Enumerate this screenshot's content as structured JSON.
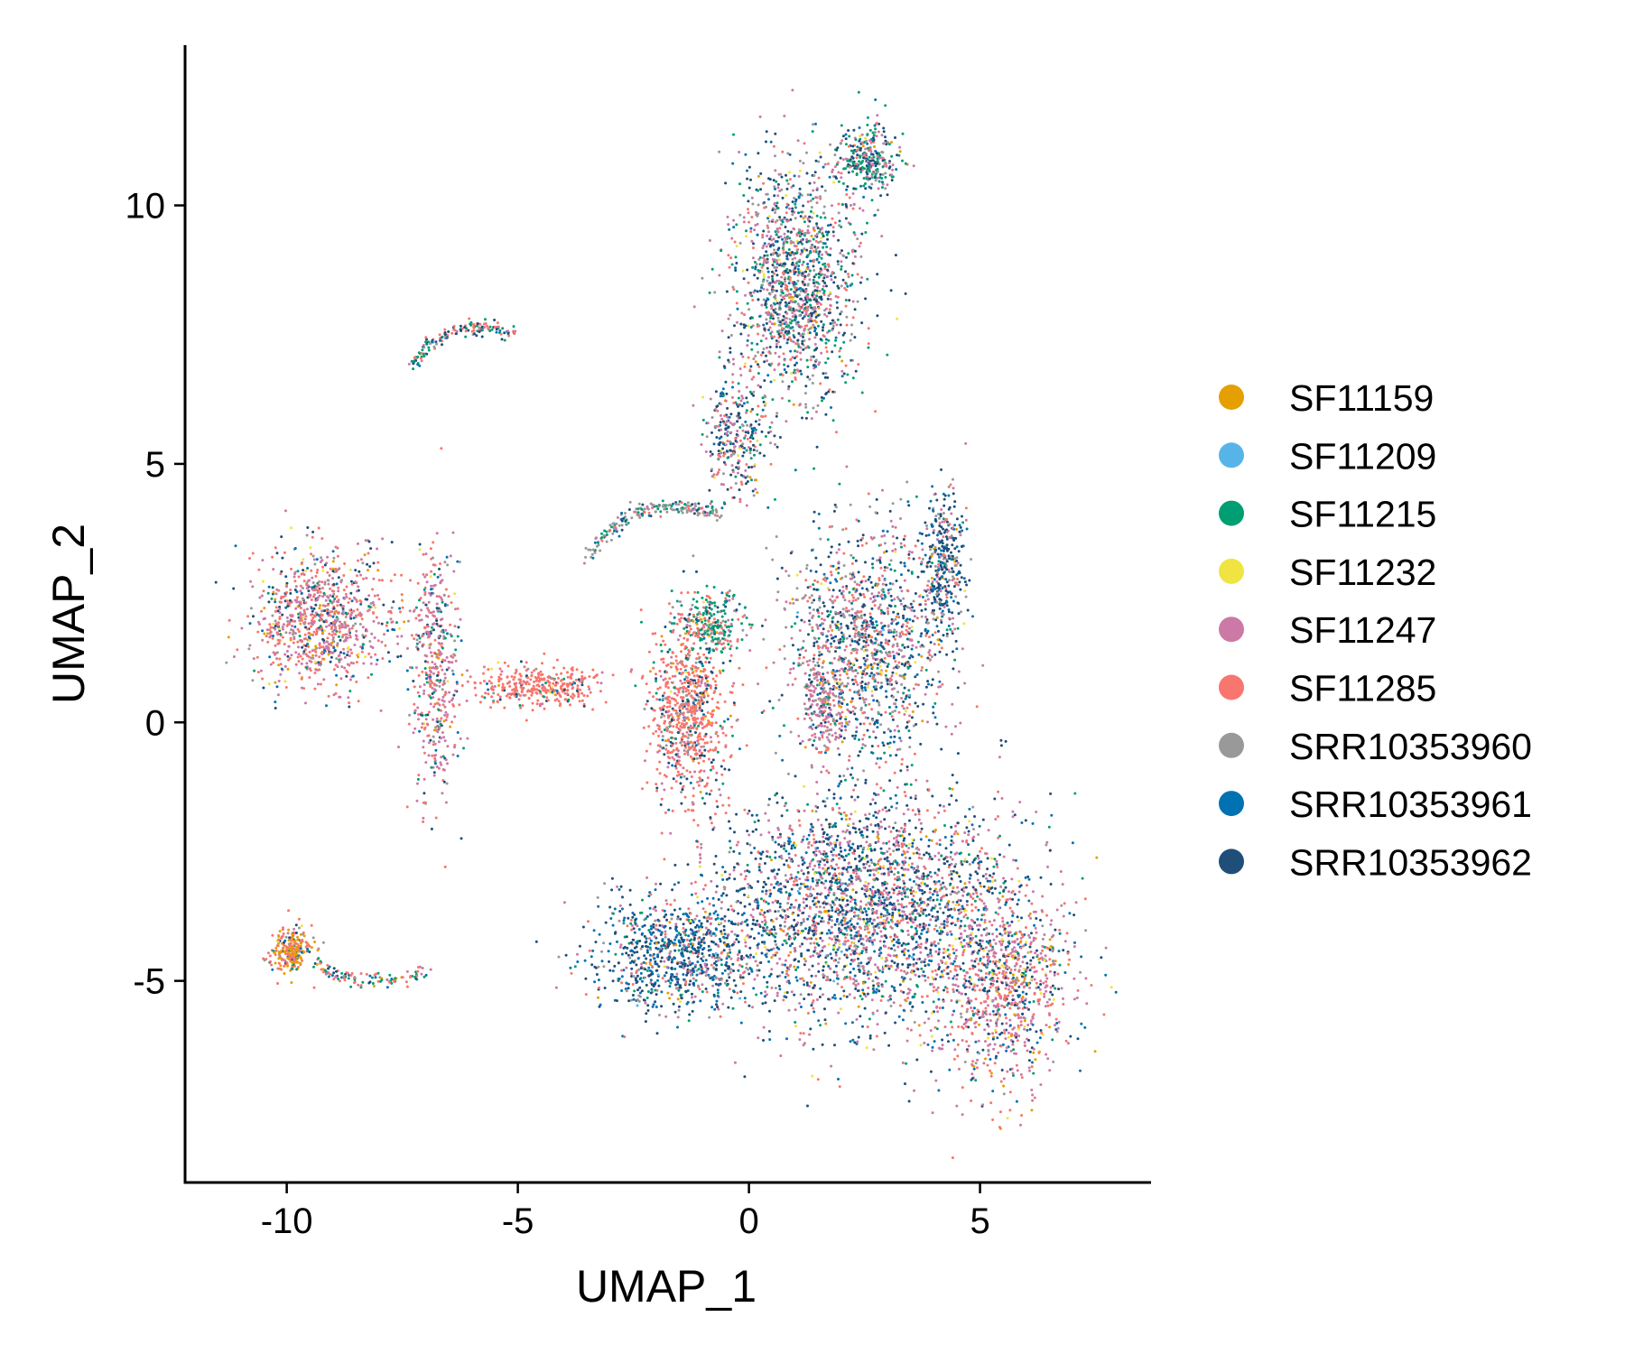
{
  "chart_data": {
    "type": "scatter",
    "xlabel": "UMAP_1",
    "ylabel": "UMAP_2",
    "xlim": [
      -12.2,
      8.7
    ],
    "ylim": [
      -8.9,
      13.1
    ],
    "x_ticks": [
      -10,
      -5,
      0,
      5
    ],
    "y_ticks": [
      -5,
      0,
      5,
      10
    ],
    "x_tick_labels": [
      "-10",
      "-5",
      "0",
      "5"
    ],
    "y_tick_labels": [
      "-5",
      "0",
      "5",
      "10"
    ],
    "legend_position": "right",
    "grid": false,
    "series": [
      {
        "name": "SF11159",
        "color": "#E69F00"
      },
      {
        "name": "SF11209",
        "color": "#56B4E9"
      },
      {
        "name": "SF11215",
        "color": "#009E73"
      },
      {
        "name": "SF11232",
        "color": "#F0E442"
      },
      {
        "name": "SF11247",
        "color": "#CC79A7"
      },
      {
        "name": "SF11285",
        "color": "#F8766D"
      },
      {
        "name": "SRR10353960",
        "color": "#999999"
      },
      {
        "name": "SRR10353961",
        "color": "#0072B2"
      },
      {
        "name": "SRR10353962",
        "color": "#1F4E79"
      }
    ],
    "clusters": [
      {
        "id": "main-lower-body",
        "center": [
          2.5,
          -3.5
        ],
        "spread": [
          2.6,
          1.9
        ],
        "n": 2600,
        "weights": [
          0.03,
          0.005,
          0.06,
          0.03,
          0.26,
          0.12,
          0.07,
          0.13,
          0.29
        ]
      },
      {
        "id": "main-lower-left",
        "center": [
          -1.5,
          -4.5
        ],
        "spread": [
          1.6,
          0.9
        ],
        "n": 900,
        "weights": [
          0.02,
          0.005,
          0.05,
          0.02,
          0.12,
          0.08,
          0.06,
          0.25,
          0.39
        ]
      },
      {
        "id": "main-lower-right",
        "center": [
          5.5,
          -5.0
        ],
        "spread": [
          1.3,
          1.6
        ],
        "n": 1000,
        "weights": [
          0.05,
          0.005,
          0.04,
          0.04,
          0.38,
          0.22,
          0.05,
          0.07,
          0.15
        ]
      },
      {
        "id": "main-middle",
        "center": [
          2.5,
          1.5
        ],
        "spread": [
          1.4,
          1.8
        ],
        "n": 1300,
        "weights": [
          0.02,
          0.005,
          0.06,
          0.02,
          0.2,
          0.14,
          0.16,
          0.12,
          0.27
        ]
      },
      {
        "id": "right-edge-dark",
        "center": [
          4.2,
          3.0
        ],
        "spread": [
          0.4,
          1.2
        ],
        "n": 350,
        "weights": [
          0.01,
          0.0,
          0.03,
          0.01,
          0.1,
          0.05,
          0.15,
          0.2,
          0.45
        ]
      },
      {
        "id": "center-salmon",
        "center": [
          -1.3,
          0.2
        ],
        "spread": [
          0.7,
          1.5
        ],
        "n": 800,
        "weights": [
          0.02,
          0.0,
          0.05,
          0.01,
          0.1,
          0.62,
          0.06,
          0.04,
          0.1
        ]
      },
      {
        "id": "center-green",
        "center": [
          -0.8,
          1.9
        ],
        "spread": [
          0.6,
          0.5
        ],
        "n": 250,
        "weights": [
          0.01,
          0.0,
          0.5,
          0.02,
          0.1,
          0.15,
          0.1,
          0.04,
          0.08
        ]
      },
      {
        "id": "pink-blob",
        "center": [
          1.6,
          0.3
        ],
        "spread": [
          0.4,
          0.7
        ],
        "n": 180,
        "weights": [
          0.01,
          0.0,
          0.05,
          0.01,
          0.65,
          0.1,
          0.08,
          0.03,
          0.07
        ]
      },
      {
        "id": "top-arm",
        "center": [
          1.0,
          8.5
        ],
        "spread": [
          1.1,
          1.9
        ],
        "n": 1400,
        "weights": [
          0.01,
          0.0,
          0.16,
          0.02,
          0.2,
          0.12,
          0.15,
          0.07,
          0.27
        ]
      },
      {
        "id": "top-arm-tip",
        "center": [
          2.6,
          10.9
        ],
        "spread": [
          0.55,
          0.55
        ],
        "n": 300,
        "weights": [
          0.01,
          0.0,
          0.3,
          0.01,
          0.15,
          0.08,
          0.1,
          0.05,
          0.3
        ]
      },
      {
        "id": "arm-neck",
        "center": [
          -0.3,
          5.5
        ],
        "spread": [
          0.6,
          1.0
        ],
        "n": 300,
        "weights": [
          0.01,
          0.0,
          0.06,
          0.02,
          0.25,
          0.1,
          0.15,
          0.1,
          0.31
        ]
      },
      {
        "id": "left-lobe",
        "center": [
          -9.3,
          2.0
        ],
        "spread": [
          1.2,
          1.1
        ],
        "n": 900,
        "weights": [
          0.04,
          0.0,
          0.03,
          0.03,
          0.34,
          0.34,
          0.06,
          0.06,
          0.1
        ]
      },
      {
        "id": "left-column",
        "center": [
          -6.8,
          1.0
        ],
        "spread": [
          0.45,
          1.9
        ],
        "n": 450,
        "weights": [
          0.03,
          0.0,
          0.08,
          0.02,
          0.4,
          0.25,
          0.08,
          0.05,
          0.09
        ]
      },
      {
        "id": "left-bridge",
        "center": [
          -4.6,
          0.7
        ],
        "spread": [
          1.2,
          0.35
        ],
        "n": 350,
        "weights": [
          0.01,
          0.0,
          0.04,
          0.01,
          0.05,
          0.8,
          0.03,
          0.02,
          0.04
        ]
      },
      {
        "id": "small-island-bottom-left",
        "center": [
          -9.9,
          -4.4
        ],
        "spread": [
          0.35,
          0.35
        ],
        "n": 260,
        "weights": [
          0.3,
          0.0,
          0.05,
          0.05,
          0.05,
          0.4,
          0.05,
          0.05,
          0.05
        ]
      }
    ],
    "arcs": [
      {
        "id": "upper-left-arc",
        "from": [
          -7.3,
          6.9
        ],
        "to": [
          -5.1,
          7.5
        ],
        "bulge": 0.35,
        "n": 150,
        "weights": [
          0.0,
          0.0,
          0.25,
          0.0,
          0.05,
          0.35,
          0.05,
          0.1,
          0.2
        ]
      },
      {
        "id": "small-island-tail",
        "from": [
          -9.4,
          -4.7
        ],
        "to": [
          -7.0,
          -4.8
        ],
        "bulge": -0.2,
        "n": 110,
        "weights": [
          0.05,
          0.0,
          0.35,
          0.0,
          0.1,
          0.3,
          0.05,
          0.05,
          0.1
        ]
      },
      {
        "id": "middle-arc",
        "from": [
          -3.5,
          3.2
        ],
        "to": [
          -0.6,
          4.0
        ],
        "bulge": 0.35,
        "n": 200,
        "weights": [
          0.0,
          0.0,
          0.15,
          0.0,
          0.1,
          0.1,
          0.45,
          0.1,
          0.1
        ]
      }
    ]
  }
}
